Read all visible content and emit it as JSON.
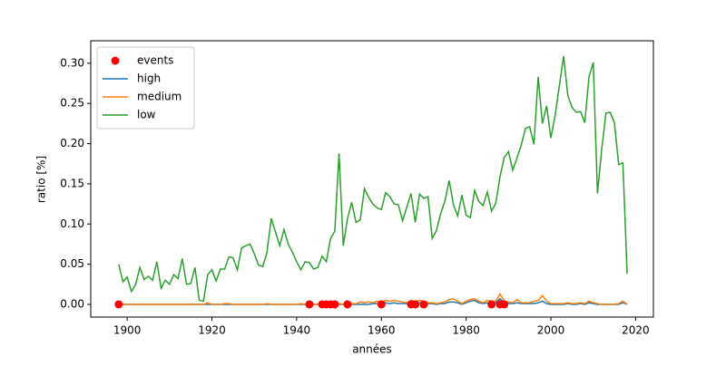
{
  "chart_data": {
    "type": "line",
    "xlabel": "années",
    "ylabel": "ratio [%]",
    "xlim": [
      1891.4,
      2024.2
    ],
    "ylim": [
      -0.0158,
      0.328
    ],
    "xticks": [
      1900,
      1920,
      1940,
      1960,
      1980,
      2000,
      2020
    ],
    "yticks": [
      {
        "value": 0,
        "label": "0.00"
      },
      {
        "value": 0.05,
        "label": "0.05"
      },
      {
        "value": 0.1,
        "label": "0.10"
      },
      {
        "value": 0.15,
        "label": "0.15"
      },
      {
        "value": 0.2,
        "label": "0.20"
      },
      {
        "value": 0.25,
        "label": "0.25"
      },
      {
        "value": 0.3,
        "label": "0.30"
      }
    ],
    "legend": "upper left",
    "grid": false,
    "events": {
      "name": "events",
      "color": "#ff0000",
      "x": [
        1898,
        1943,
        1946,
        1947,
        1948,
        1949,
        1952,
        1960,
        1967,
        1968,
        1970,
        1986,
        1988,
        1989
      ],
      "values": [
        0,
        0,
        0,
        0,
        0,
        0,
        0,
        0,
        0,
        0,
        0,
        0,
        0,
        0
      ]
    },
    "x": [
      1898,
      1899,
      1900,
      1901,
      1902,
      1903,
      1904,
      1905,
      1906,
      1907,
      1908,
      1909,
      1910,
      1911,
      1912,
      1913,
      1914,
      1915,
      1916,
      1917,
      1918,
      1919,
      1920,
      1921,
      1922,
      1923,
      1924,
      1925,
      1926,
      1927,
      1928,
      1929,
      1930,
      1931,
      1932,
      1933,
      1934,
      1935,
      1936,
      1937,
      1938,
      1939,
      1940,
      1941,
      1942,
      1943,
      1944,
      1945,
      1946,
      1947,
      1948,
      1949,
      1950,
      1951,
      1952,
      1953,
      1954,
      1955,
      1956,
      1957,
      1958,
      1959,
      1960,
      1961,
      1962,
      1963,
      1964,
      1965,
      1966,
      1967,
      1968,
      1969,
      1970,
      1971,
      1972,
      1973,
      1974,
      1975,
      1976,
      1977,
      1978,
      1979,
      1980,
      1981,
      1982,
      1983,
      1984,
      1985,
      1986,
      1987,
      1988,
      1989,
      1990,
      1991,
      1992,
      1993,
      1994,
      1995,
      1996,
      1997,
      1998,
      1999,
      2000,
      2001,
      2002,
      2003,
      2004,
      2005,
      2006,
      2007,
      2008,
      2009,
      2010,
      2011,
      2012,
      2013,
      2014,
      2015,
      2016,
      2017,
      2018
    ],
    "series": [
      {
        "name": "high",
        "color": "#1f77b4",
        "values": [
          0,
          0,
          0,
          0,
          0,
          0,
          0,
          0,
          0,
          0,
          0,
          0,
          0,
          0,
          0,
          0,
          0,
          0,
          0,
          0,
          0,
          0,
          0,
          0,
          0,
          0,
          0,
          0,
          0,
          0,
          0,
          0,
          0,
          0,
          0,
          0,
          0,
          0,
          0,
          0,
          0,
          0,
          0,
          0,
          0,
          0,
          0,
          0,
          0,
          0,
          0,
          0,
          0,
          0,
          0,
          0,
          0,
          0,
          0,
          0,
          0.001,
          0.001,
          0.001,
          0.002,
          0.001,
          0.002,
          0.001,
          0.001,
          0.001,
          0.002,
          0.002,
          0.002,
          0.001,
          0.001,
          0.001,
          0,
          0.001,
          0.001,
          0.003,
          0.003,
          0.002,
          0,
          0.002,
          0.004,
          0.005,
          0.002,
          0.001,
          0.002,
          0.001,
          0.002,
          0.007,
          0.002,
          0.001,
          0.001,
          0.002,
          0.001,
          0.001,
          0.001,
          0.001,
          0.002,
          0.004,
          0.001,
          0,
          0,
          0,
          0,
          0.001,
          0,
          0,
          0.001,
          0,
          0.002,
          0.001,
          0,
          0,
          0,
          0,
          0,
          0,
          0.002,
          0
        ]
      },
      {
        "name": "medium",
        "color": "#ff7f0e",
        "values": [
          0,
          0,
          0,
          0,
          0,
          0,
          0,
          0,
          0,
          0,
          0,
          0,
          0,
          0,
          0,
          0,
          0,
          0,
          0,
          0,
          0,
          0.002,
          0,
          0,
          0,
          0.001,
          0.001,
          0,
          0,
          0,
          0,
          0,
          0,
          0,
          0,
          0.001,
          0,
          0,
          0,
          0,
          0,
          0,
          0,
          0.001,
          0,
          0,
          0,
          0,
          0.001,
          0,
          0.001,
          0,
          0.001,
          0,
          0.002,
          0.001,
          0.001,
          0.003,
          0.002,
          0.003,
          0.002,
          0.004,
          0.003,
          0.005,
          0.004,
          0.005,
          0.004,
          0.003,
          0.002,
          0.005,
          0.004,
          0.005,
          0.004,
          0.002,
          0.002,
          0.001,
          0.002,
          0.003,
          0.006,
          0.007,
          0.004,
          0.001,
          0.004,
          0.006,
          0.007,
          0.004,
          0.002,
          0.005,
          0.004,
          0.004,
          0.013,
          0.004,
          0.003,
          0.002,
          0.006,
          0.002,
          0.002,
          0.002,
          0.004,
          0.005,
          0.011,
          0.004,
          0.001,
          0.001,
          0.001,
          0.001,
          0.002,
          0.001,
          0.001,
          0.002,
          0.001,
          0.004,
          0.002,
          0.001,
          0,
          0,
          0,
          0,
          0.001,
          0.004,
          0
        ]
      },
      {
        "name": "low",
        "color": "#2ca02c",
        "values": [
          0.05,
          0.028,
          0.034,
          0.016,
          0.025,
          0.046,
          0.031,
          0.035,
          0.03,
          0.053,
          0.02,
          0.03,
          0.025,
          0.037,
          0.032,
          0.057,
          0.025,
          0.026,
          0.046,
          0.005,
          0.004,
          0.037,
          0.043,
          0.029,
          0.044,
          0.044,
          0.059,
          0.058,
          0.043,
          0.07,
          0.073,
          0.075,
          0.063,
          0.049,
          0.047,
          0.065,
          0.107,
          0.09,
          0.073,
          0.093,
          0.075,
          0.065,
          0.053,
          0.043,
          0.053,
          0.052,
          0.044,
          0.046,
          0.06,
          0.053,
          0.082,
          0.091,
          0.188,
          0.073,
          0.107,
          0.127,
          0.102,
          0.105,
          0.144,
          0.133,
          0.125,
          0.12,
          0.118,
          0.139,
          0.134,
          0.125,
          0.124,
          0.104,
          0.121,
          0.138,
          0.102,
          0.137,
          0.132,
          0.134,
          0.082,
          0.092,
          0.113,
          0.129,
          0.154,
          0.124,
          0.11,
          0.136,
          0.111,
          0.108,
          0.142,
          0.128,
          0.123,
          0.14,
          0.116,
          0.126,
          0.159,
          0.183,
          0.19,
          0.167,
          0.182,
          0.198,
          0.219,
          0.221,
          0.199,
          0.283,
          0.225,
          0.247,
          0.207,
          0.235,
          0.272,
          0.309,
          0.26,
          0.245,
          0.239,
          0.24,
          0.226,
          0.283,
          0.301,
          0.138,
          0.193,
          0.238,
          0.239,
          0.226,
          0.174,
          0.176,
          0.038
        ]
      }
    ]
  }
}
